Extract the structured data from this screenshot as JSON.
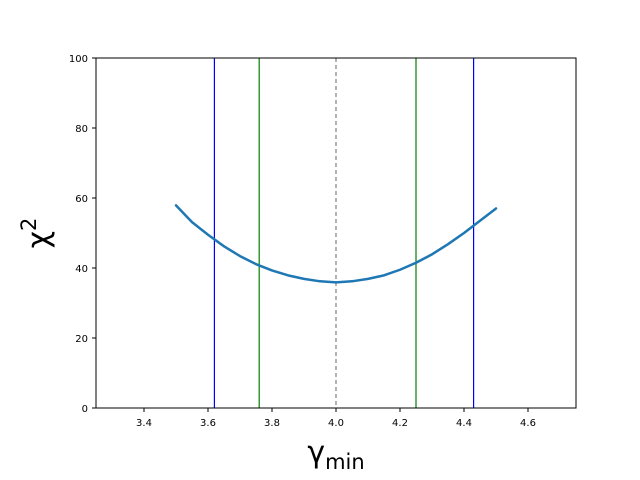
{
  "chart_data": {
    "type": "line",
    "title": "",
    "xlabel": "γ",
    "xlabel_subscript": "min",
    "ylabel": "χ",
    "ylabel_superscript": "2",
    "xlim": [
      3.25,
      4.75
    ],
    "ylim": [
      0,
      100
    ],
    "xticks": [
      3.4,
      3.6,
      3.8,
      4.0,
      4.2,
      4.4,
      4.6
    ],
    "xtick_labels": [
      "3.4",
      "3.6",
      "3.8",
      "4.0",
      "4.2",
      "4.4",
      "4.6"
    ],
    "yticks": [
      0,
      20,
      40,
      60,
      80,
      100
    ],
    "ytick_labels": [
      "0",
      "20",
      "40",
      "60",
      "80",
      "100"
    ],
    "grid": false,
    "series": [
      {
        "color": "#1f77b4",
        "x": [
          3.5,
          3.55,
          3.6,
          3.65,
          3.7,
          3.75,
          3.8,
          3.85,
          3.9,
          3.95,
          4.0,
          4.05,
          4.1,
          4.15,
          4.2,
          4.25,
          4.3,
          4.35,
          4.4,
          4.45,
          4.5
        ],
        "y": [
          57.9,
          53.1,
          49.5,
          46.2,
          43.4,
          41.1,
          39.3,
          37.9,
          36.9,
          36.2,
          35.9,
          36.2,
          36.9,
          37.9,
          39.5,
          41.5,
          43.9,
          46.8,
          50.0,
          53.5,
          57.0
        ]
      }
    ],
    "vertical_lines": [
      {
        "x": 3.62,
        "color": "#0000ff",
        "style": "solid"
      },
      {
        "x": 3.76,
        "color": "#008000",
        "style": "solid"
      },
      {
        "x": 4.0,
        "color": "#808080",
        "style": "dashed"
      },
      {
        "x": 4.25,
        "color": "#008000",
        "style": "solid"
      },
      {
        "x": 4.43,
        "color": "#0000ff",
        "style": "solid"
      }
    ]
  }
}
